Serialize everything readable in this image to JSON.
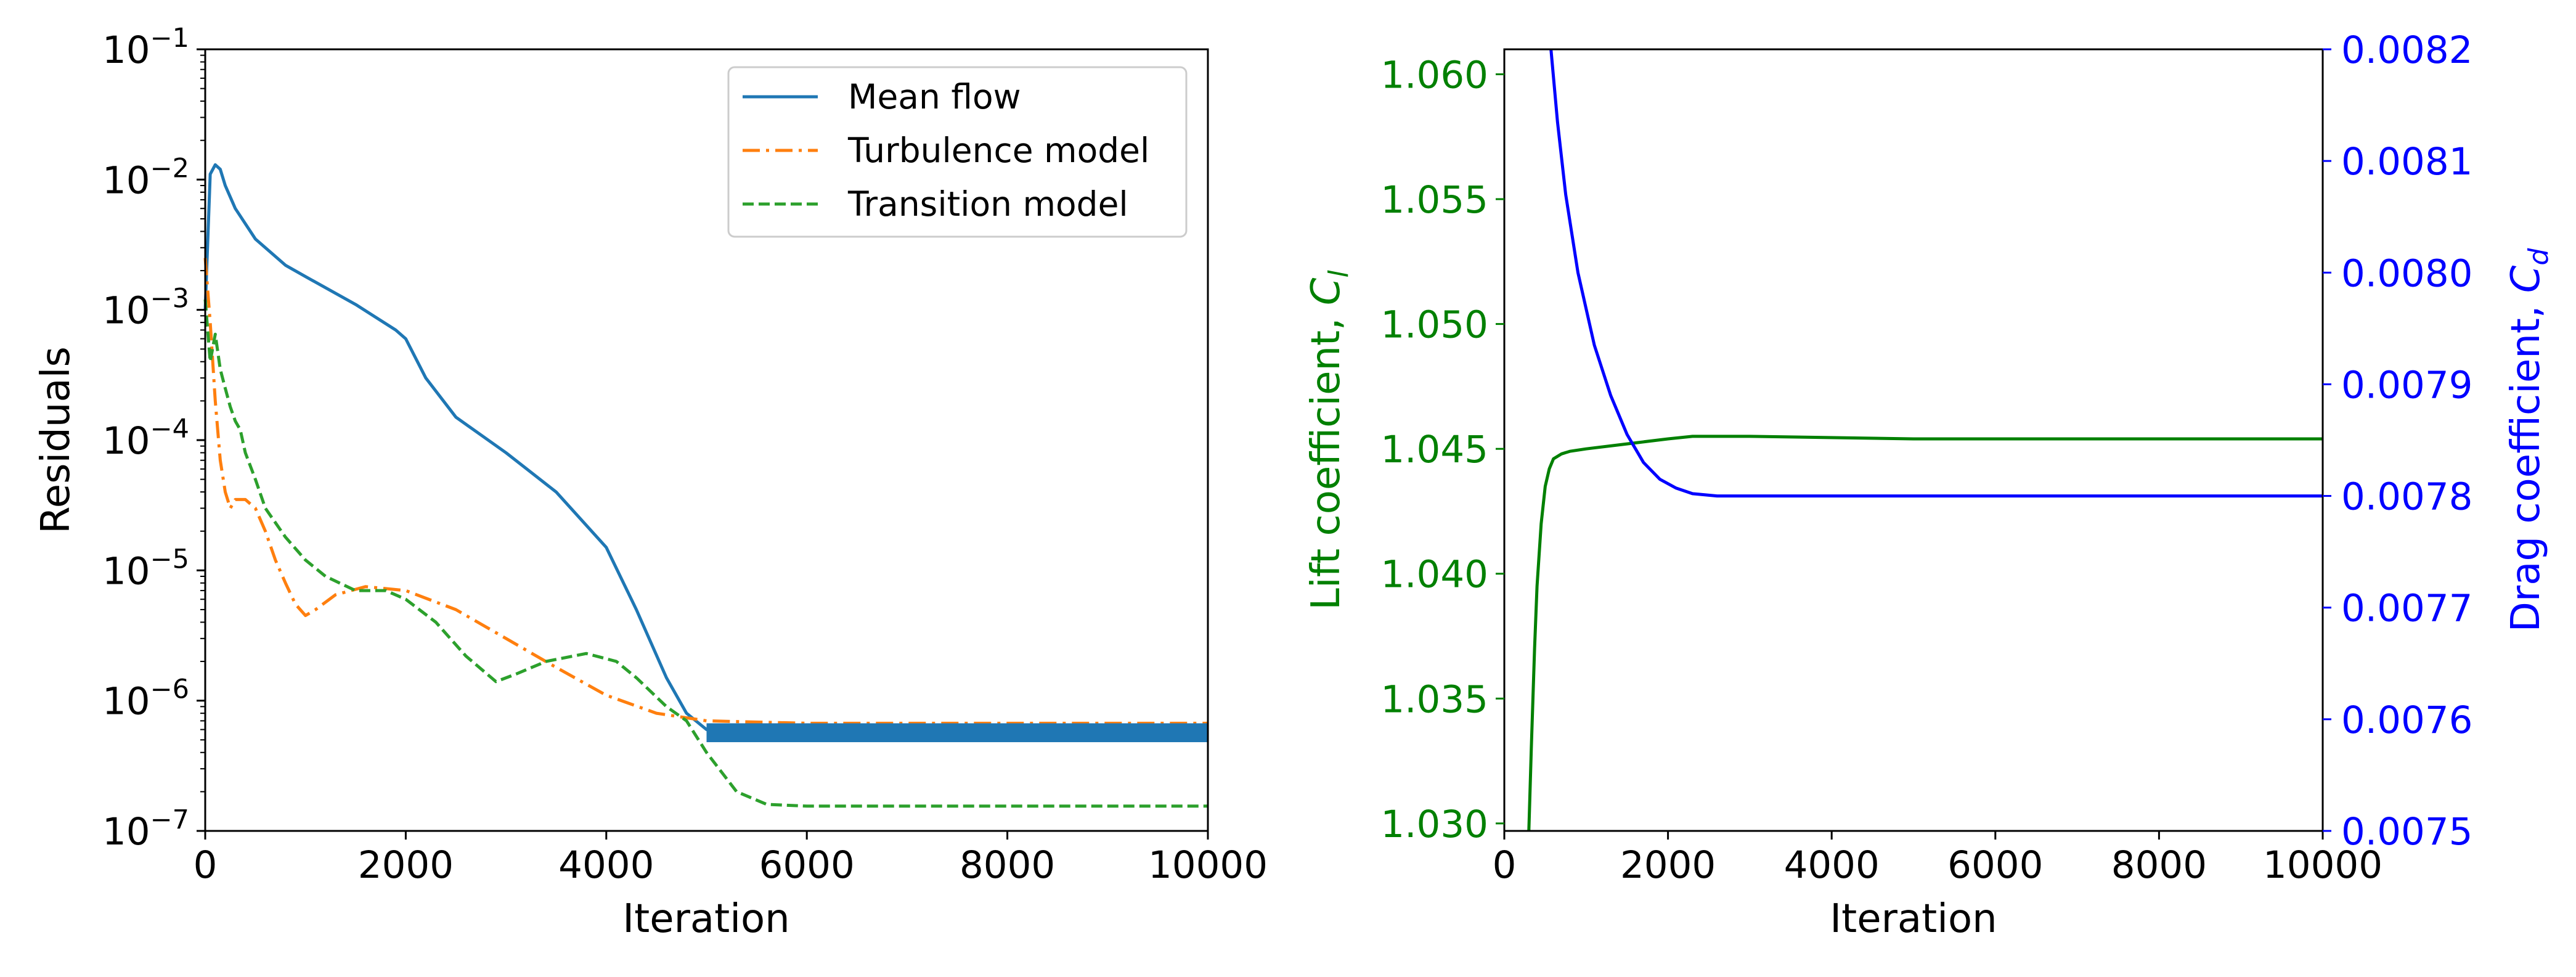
{
  "colors": {
    "mean_flow": "#1f77b4",
    "turbulence": "#ff7f0e",
    "transition": "#2ca02c",
    "lift": "#008000",
    "drag": "#0000ff",
    "axis": "#000000"
  },
  "chart_data": [
    {
      "type": "line",
      "xlabel": "Iteration",
      "ylabel": "Residuals",
      "xlim": [
        0,
        10000
      ],
      "ylim": [
        1e-07,
        0.1
      ],
      "yscale": "log",
      "xticks": [
        "0",
        "2000",
        "4000",
        "6000",
        "8000",
        "10000"
      ],
      "yticks": [
        {
          "base": "10",
          "exp": "−1"
        },
        {
          "base": "10",
          "exp": "−2"
        },
        {
          "base": "10",
          "exp": "−3"
        },
        {
          "base": "10",
          "exp": "−4"
        },
        {
          "base": "10",
          "exp": "−5"
        },
        {
          "base": "10",
          "exp": "−6"
        },
        {
          "base": "10",
          "exp": "−7"
        }
      ],
      "legend_position": "top-right",
      "series": [
        {
          "name": "Mean flow",
          "style": "solid",
          "x": [
            0,
            50,
            100,
            150,
            200,
            300,
            500,
            800,
            1000,
            1500,
            1900,
            2000,
            2200,
            2500,
            3000,
            3500,
            4000,
            4300,
            4600,
            4800,
            5000,
            5500,
            6000,
            7000,
            8000,
            9000,
            10000
          ],
          "y": [
            0.001,
            0.011,
            0.013,
            0.012,
            0.009,
            0.006,
            0.0035,
            0.0022,
            0.0018,
            0.0011,
            0.0007,
            0.0006,
            0.0003,
            0.00015,
            8e-05,
            4e-05,
            1.5e-05,
            5e-06,
            1.5e-06,
            8e-07,
            6e-07,
            5.8e-07,
            5.8e-07,
            5.8e-07,
            5.8e-07,
            5.8e-07,
            5.8e-07
          ]
        },
        {
          "name": "Turbulence model",
          "style": "dashdot",
          "x": [
            0,
            50,
            100,
            150,
            200,
            250,
            300,
            400,
            500,
            600,
            700,
            800,
            900,
            1000,
            1100,
            1300,
            1600,
            2000,
            2500,
            3000,
            3500,
            4000,
            4500,
            5000,
            6000,
            7000,
            8000,
            9000,
            10000
          ],
          "y": [
            0.0025,
            0.0008,
            0.0002,
            7e-05,
            4e-05,
            3e-05,
            3.5e-05,
            3.5e-05,
            3e-05,
            2e-05,
            1.2e-05,
            8e-06,
            5.5e-06,
            4.5e-06,
            5e-06,
            6.5e-06,
            7.5e-06,
            7e-06,
            5e-06,
            3e-06,
            1.8e-06,
            1.1e-06,
            8e-07,
            7e-07,
            6.7e-07,
            6.7e-07,
            6.7e-07,
            6.7e-07,
            6.7e-07
          ]
        },
        {
          "name": "Transition model",
          "style": "dashed",
          "x": [
            0,
            50,
            100,
            150,
            200,
            250,
            300,
            350,
            400,
            500,
            600,
            800,
            1000,
            1200,
            1500,
            1800,
            2000,
            2300,
            2600,
            2900,
            3100,
            3400,
            3800,
            4100,
            4300,
            4600,
            4800,
            5000,
            5300,
            5600,
            6000,
            7000,
            8000,
            9000,
            10000
          ],
          "y": [
            0.0012,
            0.0004,
            0.00065,
            0.00035,
            0.00025,
            0.00018,
            0.00014,
            0.00012,
            8e-05,
            5e-05,
            3e-05,
            1.8e-05,
            1.2e-05,
            9e-06,
            7e-06,
            7e-06,
            6e-06,
            4e-06,
            2.2e-06,
            1.4e-06,
            1.6e-06,
            2e-06,
            2.3e-06,
            2e-06,
            1.5e-06,
            9e-07,
            7e-07,
            4e-07,
            2e-07,
            1.6e-07,
            1.55e-07,
            1.55e-07,
            1.55e-07,
            1.55e-07,
            1.55e-07
          ]
        }
      ]
    },
    {
      "type": "line",
      "xlabel": "Iteration",
      "xlim": [
        0,
        10000
      ],
      "xticks": [
        "0",
        "2000",
        "4000",
        "6000",
        "8000",
        "10000"
      ],
      "left_axis": {
        "label": {
          "prefix": "Lift coefficient, ",
          "symbol": "C",
          "sub": "l"
        },
        "ylim": [
          1.0297,
          1.061
        ],
        "ticks": [
          1.03,
          1.035,
          1.04,
          1.045,
          1.05,
          1.055,
          1.06
        ],
        "tick_labels": [
          "1.030",
          "1.035",
          "1.040",
          "1.045",
          "1.050",
          "1.055",
          "1.060"
        ]
      },
      "right_axis": {
        "label": {
          "prefix": "Drag coefficient, ",
          "symbol": "C",
          "sub": "d"
        },
        "ylim": [
          0.0075,
          0.0082
        ],
        "ticks": [
          0.0075,
          0.0076,
          0.0077,
          0.0078,
          0.0079,
          0.008,
          0.0081,
          0.0082
        ],
        "tick_labels": [
          "0.0075",
          "0.0076",
          "0.0077",
          "0.0078",
          "0.0079",
          "0.0080",
          "0.0081",
          "0.0082"
        ]
      },
      "series": [
        {
          "axis": "left",
          "x": [
            300,
            330,
            370,
            400,
            450,
            500,
            550,
            600,
            700,
            800,
            1000,
            1500,
            2000,
            2300,
            3000,
            5000,
            7000,
            10000
          ],
          "y": [
            1.0297,
            1.033,
            1.037,
            1.0395,
            1.042,
            1.0435,
            1.0442,
            1.0446,
            1.0448,
            1.0449,
            1.045,
            1.0452,
            1.0454,
            1.0455,
            1.0455,
            1.0454,
            1.0454,
            1.0454
          ]
        },
        {
          "axis": "right",
          "x": [
            570,
            650,
            750,
            900,
            1100,
            1300,
            1500,
            1700,
            1900,
            2100,
            2300,
            2600,
            3000,
            4000,
            6000,
            8000,
            10000
          ],
          "y": [
            0.0082,
            0.008135,
            0.00807,
            0.008,
            0.007935,
            0.00789,
            0.007855,
            0.00783,
            0.007815,
            0.007807,
            0.007802,
            0.0078,
            0.0078,
            0.0078,
            0.0078,
            0.0078,
            0.0078
          ]
        }
      ]
    }
  ]
}
